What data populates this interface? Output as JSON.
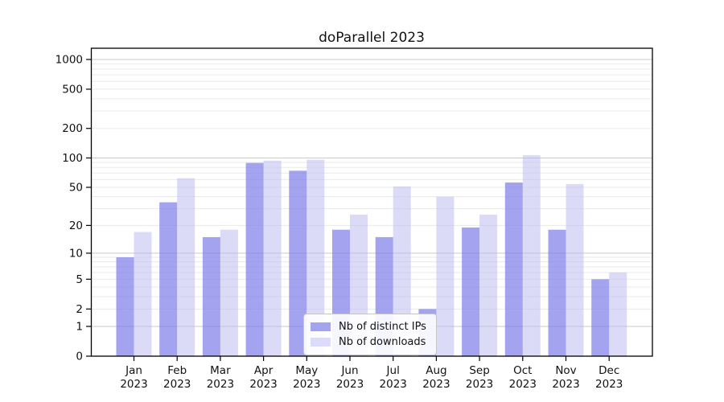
{
  "chart_data": {
    "type": "bar",
    "title": "doParallel 2023",
    "categories": [
      "Jan",
      "Feb",
      "Mar",
      "Apr",
      "May",
      "Jun",
      "Jul",
      "Aug",
      "Sep",
      "Oct",
      "Nov",
      "Dec"
    ],
    "x_sublabel": "2023",
    "series": [
      {
        "name": "Nb of distinct IPs",
        "swatch_color": "#a3a3ef",
        "bar_fill": "rgba(124,124,233,0.70)",
        "values": [
          9,
          35,
          15,
          89,
          74,
          18,
          15,
          2,
          19,
          56,
          18,
          5
        ]
      },
      {
        "name": "Nb of downloads",
        "swatch_color": "#dcdcf8",
        "bar_fill": "rgba(184,184,242,0.50)",
        "values": [
          17,
          62,
          18,
          94,
          96,
          26,
          51,
          40,
          26,
          107,
          54,
          6
        ]
      }
    ],
    "yscale": "log1p",
    "ylim": [
      0,
      1299
    ],
    "ytick_labels": [
      0,
      1,
      2,
      5,
      10,
      20,
      50,
      100,
      200,
      500,
      1000
    ],
    "grid_major": [
      1,
      10,
      100,
      1000
    ],
    "grid_minor": [
      2,
      3,
      4,
      5,
      6,
      7,
      8,
      9,
      20,
      30,
      40,
      50,
      60,
      70,
      80,
      90,
      200,
      300,
      400,
      500,
      600,
      700,
      800,
      900
    ],
    "legend": {
      "position": "lower center"
    },
    "colors": {
      "axis": "#000000",
      "grid_major": "#c9c9c9",
      "grid_minor": "#eaeaea",
      "tick_label": "#111111"
    }
  }
}
